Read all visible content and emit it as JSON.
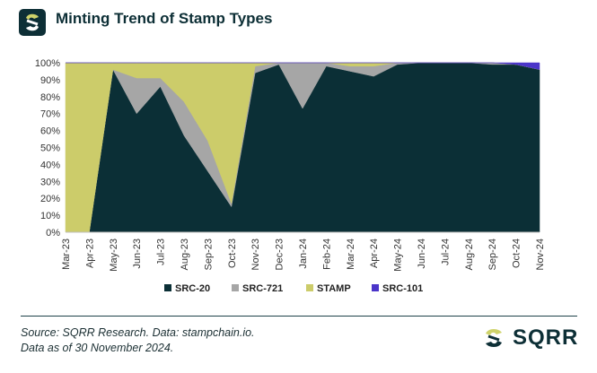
{
  "header": {
    "title": "Minting Trend of Stamp Types",
    "logo_icon": "sqrr-logo-icon"
  },
  "chart_data": {
    "type": "area",
    "stacked": true,
    "title": "Minting Trend of Stamp Types",
    "xlabel": "",
    "ylabel": "",
    "ylim": [
      0,
      100
    ],
    "y_ticks": [
      "0%",
      "10%",
      "20%",
      "30%",
      "40%",
      "50%",
      "60%",
      "70%",
      "80%",
      "90%",
      "100%"
    ],
    "categories": [
      "Mar-23",
      "Apr-23",
      "May-23",
      "Jun-23",
      "Jul-23",
      "Aug-23",
      "Sep-23",
      "Oct-23",
      "Nov-23",
      "Dec-23",
      "Jan-24",
      "Feb-24",
      "Mar-24",
      "Apr-24",
      "May-24",
      "Jun-24",
      "Jul-24",
      "Aug-24",
      "Sep-24",
      "Oct-24",
      "Nov-24"
    ],
    "series": [
      {
        "name": "SRC-20",
        "color": "#0b2f36",
        "values": [
          0,
          0,
          96,
          70,
          86,
          57,
          36,
          15,
          94,
          99,
          73,
          98,
          95,
          92,
          99,
          100,
          100,
          100,
          99,
          99,
          96
        ]
      },
      {
        "name": "SRC-721",
        "color": "#a6a6a6",
        "values": [
          0,
          0,
          0,
          21,
          5,
          20,
          18,
          2,
          4,
          1,
          27,
          2,
          3,
          6,
          1,
          0,
          0,
          0,
          1,
          0,
          0
        ]
      },
      {
        "name": "STAMP",
        "color": "#cccc6a",
        "values": [
          100,
          100,
          4,
          9,
          9,
          23,
          46,
          83,
          2,
          0,
          0,
          0,
          2,
          2,
          0,
          0,
          0,
          0,
          0,
          0,
          0
        ]
      },
      {
        "name": "SRC-101",
        "color": "#4b35c9",
        "values": [
          0,
          0,
          0,
          0,
          0,
          0,
          0,
          0,
          0,
          0,
          0,
          0,
          0,
          0,
          0,
          0,
          0,
          0,
          0,
          1,
          4
        ]
      }
    ],
    "legend": [
      "SRC-20",
      "SRC-721",
      "STAMP",
      "SRC-101"
    ],
    "legend_position": "bottom",
    "grid": false
  },
  "footer": {
    "source_line1": "Source: SQRR Research. Data: stampchain.io.",
    "source_line2": "Data as of 30 November 2024.",
    "brand": "SQRR"
  }
}
